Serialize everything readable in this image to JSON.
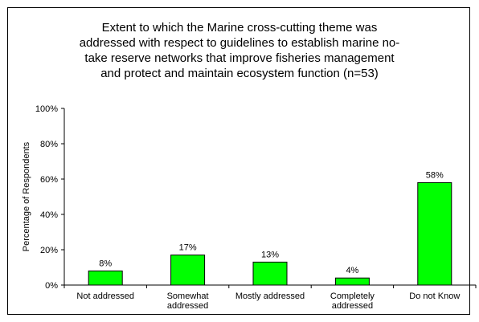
{
  "chart_data": {
    "type": "bar",
    "title": "Extent to which the Marine cross-cutting theme was\naddressed with respect to guidelines to establish marine no-\ntake reserve networks that improve fisheries management\nand protect and maintain ecosystem function (n=53)",
    "xlabel": "",
    "ylabel": "Percentage of Respondents",
    "ylim": [
      0,
      100
    ],
    "yticks": [
      "0%",
      "20%",
      "40%",
      "60%",
      "80%",
      "100%"
    ],
    "categories": [
      [
        "Not addressed"
      ],
      [
        "Somewhat",
        "addressed"
      ],
      [
        "Mostly addressed"
      ],
      [
        "Completely",
        "addressed"
      ],
      [
        "Do not Know"
      ]
    ],
    "values": [
      8,
      17,
      13,
      4,
      58
    ],
    "data_labels": [
      "8%",
      "17%",
      "13%",
      "4%",
      "58%"
    ],
    "bar_color": "#00FF00",
    "grid": false,
    "legend": "none"
  }
}
